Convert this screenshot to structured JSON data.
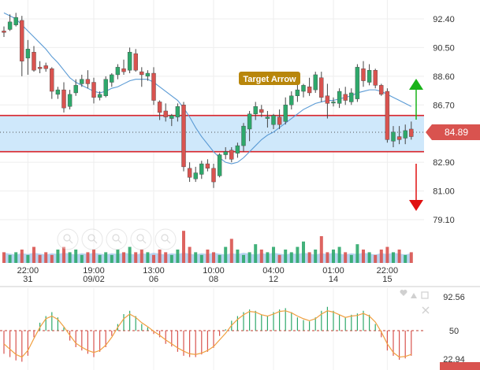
{
  "colors": {
    "up": "#2ea86b",
    "down": "#d9534f",
    "ma_line": "#5b9bd5",
    "zone_fill": "#cfe8fb",
    "zone_line": "#d9232a",
    "arrow_up": "#19b319",
    "arrow_down": "#e01010",
    "annotation_bg": "#b8860b",
    "osc_line": "#f0a040",
    "osc_level": "#c0392b",
    "volume_band": "#9fc6ec"
  },
  "chart_data": [
    {
      "type": "candlestick",
      "title": "",
      "y_ticks": [
        "92.40",
        "90.50",
        "88.60",
        "86.70",
        "82.90",
        "81.00",
        "79.10"
      ],
      "ylim": [
        78.0,
        93.5
      ],
      "x_ticks": [
        {
          "top": "22:00",
          "bottom": "31",
          "index": 4
        },
        {
          "top": "19:00",
          "bottom": "09/02",
          "index": 15
        },
        {
          "top": "13:00",
          "bottom": "06",
          "index": 25
        },
        {
          "top": "10:00",
          "bottom": "08",
          "index": 35
        },
        {
          "top": "04:00",
          "bottom": "12",
          "index": 45
        },
        {
          "top": "01:00",
          "bottom": "14",
          "index": 55
        },
        {
          "top": "22:00",
          "bottom": "15",
          "index": 64
        }
      ],
      "current_price": "84.89",
      "zone": {
        "upper": 86.0,
        "lower": 83.6,
        "mid": 84.89
      },
      "annotation": "Target Arrow",
      "candles": [
        [
          91.6,
          91.9,
          91.2,
          91.5
        ],
        [
          91.7,
          92.7,
          91.6,
          92.2
        ],
        [
          92.0,
          92.8,
          91.9,
          92.5
        ],
        [
          92.3,
          92.6,
          88.6,
          89.6
        ],
        [
          89.8,
          91.0,
          88.7,
          90.4
        ],
        [
          90.2,
          90.6,
          88.9,
          89.0
        ],
        [
          89.2,
          89.6,
          88.8,
          89.1
        ],
        [
          89.3,
          89.5,
          88.9,
          89.1
        ],
        [
          89.1,
          89.2,
          87.1,
          87.6
        ],
        [
          87.4,
          87.9,
          87.1,
          87.7
        ],
        [
          87.7,
          88.2,
          86.2,
          86.5
        ],
        [
          86.6,
          87.7,
          86.4,
          87.4
        ],
        [
          87.5,
          88.4,
          87.3,
          88.0
        ],
        [
          88.1,
          88.7,
          87.9,
          88.4
        ],
        [
          88.4,
          89.0,
          87.8,
          88.1
        ],
        [
          88.2,
          88.5,
          86.8,
          87.2
        ],
        [
          87.2,
          87.6,
          87.0,
          87.4
        ],
        [
          87.3,
          88.6,
          87.2,
          88.4
        ],
        [
          88.2,
          88.8,
          87.9,
          88.7
        ],
        [
          88.7,
          89.4,
          88.4,
          89.2
        ],
        [
          89.1,
          89.7,
          88.7,
          88.9
        ],
        [
          89.0,
          90.5,
          88.8,
          90.2
        ],
        [
          90.1,
          90.4,
          88.9,
          89.0
        ],
        [
          88.9,
          89.2,
          87.9,
          88.7
        ],
        [
          88.6,
          89.0,
          88.3,
          88.8
        ],
        [
          88.8,
          89.2,
          86.7,
          87.0
        ],
        [
          86.9,
          87.0,
          85.7,
          86.2
        ],
        [
          86.3,
          86.8,
          85.6,
          85.9
        ],
        [
          85.8,
          86.1,
          85.3,
          86.0
        ],
        [
          85.9,
          86.8,
          85.6,
          86.6
        ],
        [
          86.7,
          86.9,
          82.3,
          82.6
        ],
        [
          82.5,
          82.9,
          81.6,
          81.9
        ],
        [
          81.8,
          82.6,
          81.6,
          82.2
        ],
        [
          82.1,
          83.0,
          81.8,
          82.8
        ],
        [
          82.8,
          83.1,
          82.3,
          82.5
        ],
        [
          82.5,
          82.8,
          81.2,
          81.6
        ],
        [
          82.0,
          83.5,
          81.9,
          83.4
        ],
        [
          83.4,
          83.9,
          83.1,
          83.6
        ],
        [
          83.7,
          83.9,
          82.9,
          83.1
        ],
        [
          83.5,
          84.2,
          83.2,
          84.0
        ],
        [
          84.0,
          85.5,
          83.6,
          85.3
        ],
        [
          85.1,
          86.3,
          84.3,
          86.1
        ],
        [
          86.1,
          86.9,
          85.7,
          86.6
        ],
        [
          86.4,
          86.7,
          85.9,
          86.2
        ],
        [
          85.8,
          86.3,
          85.2,
          85.9
        ],
        [
          85.4,
          86.1,
          85.1,
          86.0
        ],
        [
          85.9,
          86.4,
          85.1,
          85.4
        ],
        [
          85.6,
          87.2,
          85.4,
          86.7
        ],
        [
          86.7,
          87.6,
          86.4,
          87.3
        ],
        [
          87.3,
          88.1,
          86.9,
          87.7
        ],
        [
          87.6,
          88.1,
          87.2,
          88.0
        ],
        [
          87.9,
          88.5,
          87.3,
          87.5
        ],
        [
          87.7,
          88.9,
          87.5,
          88.7
        ],
        [
          88.5,
          88.9,
          86.9,
          87.2
        ],
        [
          87.3,
          88.1,
          85.8,
          86.8
        ],
        [
          86.9,
          87.2,
          86.6,
          86.9
        ],
        [
          86.8,
          87.8,
          86.5,
          87.6
        ],
        [
          87.4,
          87.9,
          86.7,
          87.0
        ],
        [
          86.9,
          87.8,
          86.7,
          87.5
        ],
        [
          87.1,
          89.4,
          86.9,
          89.2
        ],
        [
          89.1,
          89.6,
          87.9,
          88.3
        ],
        [
          88.2,
          89.4,
          88.0,
          89.0
        ],
        [
          89.0,
          89.1,
          87.8,
          88.0
        ],
        [
          88.0,
          88.1,
          87.3,
          87.4
        ],
        [
          87.6,
          87.8,
          84.2,
          84.4
        ],
        [
          84.3,
          85.3,
          83.9,
          84.9
        ],
        [
          84.6,
          85.3,
          84.1,
          84.4
        ],
        [
          84.5,
          85.4,
          84.1,
          85.0
        ],
        [
          85.1,
          85.6,
          84.4,
          84.6
        ]
      ],
      "ma": [
        92.8,
        92.6,
        92.4,
        92.0,
        91.6,
        91.2,
        90.8,
        90.4,
        89.9,
        89.5,
        89.0,
        88.5,
        88.2,
        88.0,
        87.8,
        87.6,
        87.5,
        87.6,
        87.8,
        87.9,
        88.1,
        88.3,
        88.4,
        88.4,
        88.4,
        88.2,
        87.9,
        87.6,
        87.3,
        87.0,
        86.5,
        85.9,
        85.2,
        84.6,
        84.1,
        83.6,
        83.2,
        82.9,
        82.8,
        82.9,
        83.2,
        83.6,
        84.0,
        84.4,
        84.7,
        84.9,
        85.2,
        85.5,
        85.8,
        86.1,
        86.4,
        86.6,
        86.8,
        86.9,
        87.0,
        87.0,
        87.1,
        87.2,
        87.3,
        87.5,
        87.6,
        87.7,
        87.7,
        87.6,
        87.4,
        87.2,
        87.0,
        86.8,
        86.6
      ],
      "volume": [
        4,
        3,
        4,
        5,
        3,
        6,
        3,
        4,
        3,
        5,
        6,
        4,
        5,
        3,
        4,
        5,
        3,
        4,
        3,
        5,
        4,
        6,
        4,
        5,
        4,
        3,
        5,
        4,
        3,
        5,
        12,
        6,
        4,
        3,
        5,
        4,
        3,
        6,
        9,
        5,
        3,
        4,
        7,
        5,
        4,
        6,
        3,
        5,
        4,
        6,
        8,
        4,
        5,
        10,
        4,
        5,
        6,
        4,
        3,
        7,
        5,
        4,
        3,
        5,
        6,
        4,
        5,
        3,
        4
      ]
    },
    {
      "type": "oscillator",
      "y_ticks": [
        "92.56",
        "50",
        "22.94"
      ],
      "ylim": [
        0,
        100
      ],
      "level": 50,
      "line": [
        30,
        22,
        14,
        10,
        20,
        38,
        55,
        68,
        72,
        67,
        56,
        43,
        31,
        25,
        20,
        17,
        20,
        28,
        40,
        55,
        68,
        75,
        70,
        62,
        56,
        49,
        43,
        36,
        30,
        24,
        19,
        15,
        14,
        16,
        20,
        26,
        36,
        46,
        58,
        67,
        74,
        79,
        78,
        74,
        72,
        75,
        79,
        80,
        77,
        72,
        68,
        65,
        68,
        75,
        80,
        78,
        74,
        70,
        72,
        73,
        76,
        72,
        63,
        48,
        30,
        17,
        10,
        11,
        14
      ],
      "bars": [
        15,
        10,
        5,
        3,
        12,
        40,
        62,
        72,
        78,
        70,
        55,
        35,
        25,
        20,
        15,
        10,
        18,
        25,
        42,
        60,
        75,
        80,
        72,
        60,
        55,
        45,
        40,
        30,
        26,
        18,
        12,
        10,
        10,
        14,
        18,
        24,
        42,
        52,
        65,
        72,
        78,
        82,
        80,
        74,
        72,
        78,
        82,
        84,
        78,
        70,
        66,
        64,
        70,
        80,
        86,
        80,
        74,
        70,
        74,
        76,
        80,
        74,
        60,
        40,
        20,
        12,
        6,
        8,
        12
      ]
    }
  ]
}
